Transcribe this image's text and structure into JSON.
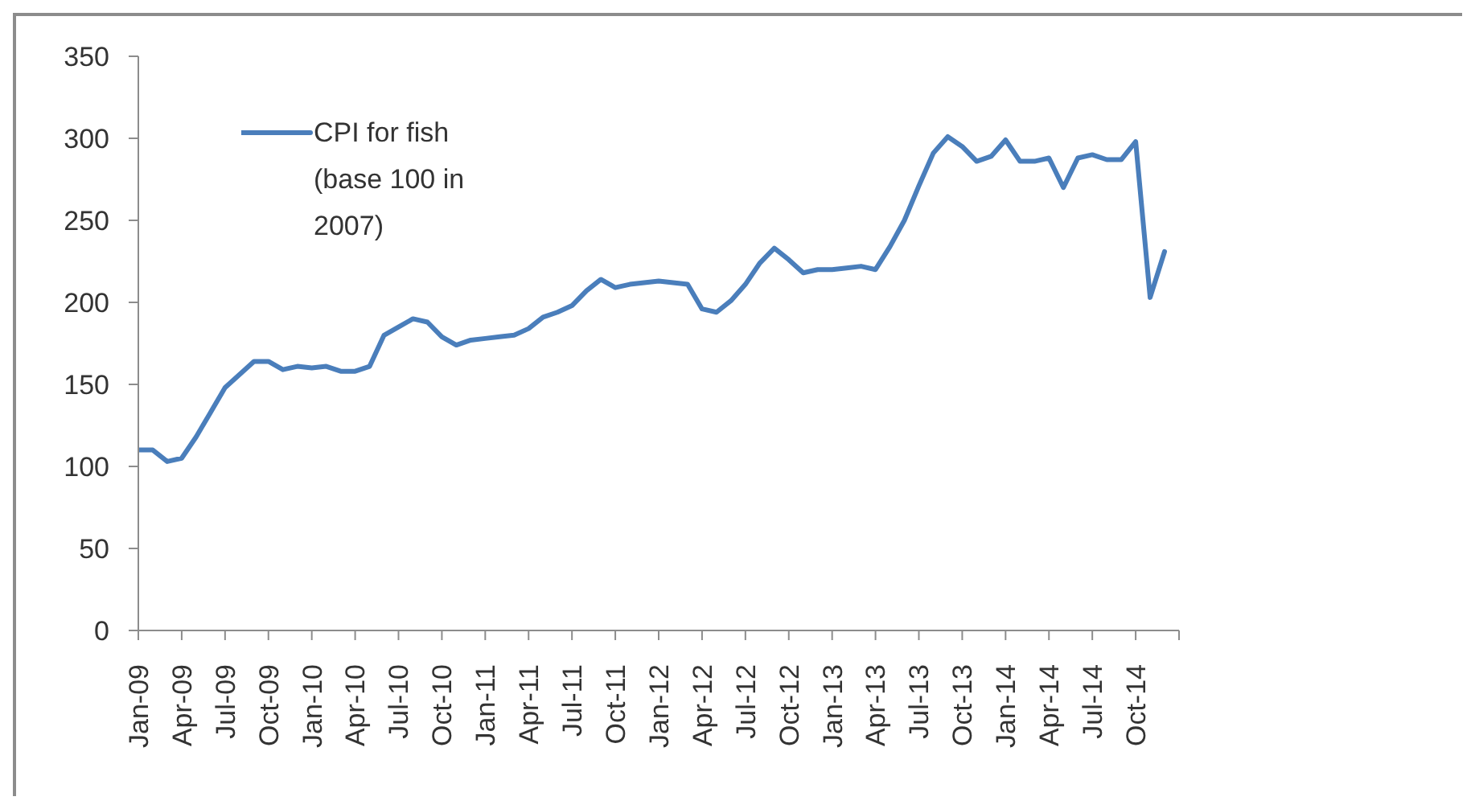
{
  "chart_data": {
    "type": "line",
    "x": [
      "2009-01",
      "2009-02",
      "2009-03",
      "2009-04",
      "2009-05",
      "2009-06",
      "2009-07",
      "2009-08",
      "2009-09",
      "2009-10",
      "2009-11",
      "2009-12",
      "2010-01",
      "2010-02",
      "2010-03",
      "2010-04",
      "2010-05",
      "2010-06",
      "2010-07",
      "2010-08",
      "2010-09",
      "2010-10",
      "2010-11",
      "2010-12",
      "2011-01",
      "2011-02",
      "2011-03",
      "2011-04",
      "2011-05",
      "2011-06",
      "2011-07",
      "2011-08",
      "2011-09",
      "2011-10",
      "2011-11",
      "2011-12",
      "2012-01",
      "2012-02",
      "2012-03",
      "2012-04",
      "2012-05",
      "2012-06",
      "2012-07",
      "2012-08",
      "2012-09",
      "2012-10",
      "2012-11",
      "2012-12",
      "2013-01",
      "2013-02",
      "2013-03",
      "2013-04",
      "2013-05",
      "2013-06",
      "2013-07",
      "2013-08",
      "2013-09",
      "2013-10",
      "2013-11",
      "2013-12",
      "2014-01",
      "2014-02",
      "2014-03",
      "2014-04",
      "2014-05",
      "2014-06",
      "2014-07",
      "2014-08",
      "2014-09",
      "2014-10",
      "2014-11",
      "2014-12"
    ],
    "series": [
      {
        "name": "CPI for fish (base 100 in 2007)",
        "color": "#4a7ebb",
        "values": [
          110,
          110,
          103,
          105,
          118,
          133,
          148,
          156,
          164,
          164,
          159,
          161,
          160,
          161,
          158,
          158,
          161,
          180,
          185,
          190,
          188,
          179,
          174,
          177,
          178,
          179,
          180,
          184,
          191,
          194,
          198,
          207,
          214,
          209,
          211,
          212,
          213,
          212,
          211,
          196,
          194,
          201,
          211,
          224,
          233,
          226,
          218,
          220,
          220,
          221,
          222,
          220,
          234,
          250,
          271,
          291,
          301,
          295,
          286,
          289,
          299,
          286,
          286,
          288,
          270,
          288,
          290,
          287,
          287,
          298,
          203,
          231
        ]
      }
    ],
    "xlim": [
      "2009-01",
      "2015-01"
    ],
    "xticks": [
      {
        "value": "2009-01",
        "label": "Jan-09"
      },
      {
        "value": "2009-04",
        "label": "Apr-09"
      },
      {
        "value": "2009-07",
        "label": "Jul-09"
      },
      {
        "value": "2009-10",
        "label": "Oct-09"
      },
      {
        "value": "2010-01",
        "label": "Jan-10"
      },
      {
        "value": "2010-04",
        "label": "Apr-10"
      },
      {
        "value": "2010-07",
        "label": "Jul-10"
      },
      {
        "value": "2010-10",
        "label": "Oct-10"
      },
      {
        "value": "2011-01",
        "label": "Jan-11"
      },
      {
        "value": "2011-04",
        "label": "Apr-11"
      },
      {
        "value": "2011-07",
        "label": "Jul-11"
      },
      {
        "value": "2011-10",
        "label": "Oct-11"
      },
      {
        "value": "2012-01",
        "label": "Jan-12"
      },
      {
        "value": "2012-04",
        "label": "Apr-12"
      },
      {
        "value": "2012-07",
        "label": "Jul-12"
      },
      {
        "value": "2012-10",
        "label": "Oct-12"
      },
      {
        "value": "2013-01",
        "label": "Jan-13"
      },
      {
        "value": "2013-04",
        "label": "Apr-13"
      },
      {
        "value": "2013-07",
        "label": "Jul-13"
      },
      {
        "value": "2013-10",
        "label": "Oct-13"
      },
      {
        "value": "2014-01",
        "label": "Jan-14"
      },
      {
        "value": "2014-04",
        "label": "Apr-14"
      },
      {
        "value": "2014-07",
        "label": "Jul-14"
      },
      {
        "value": "2014-10",
        "label": "Oct-14"
      },
      {
        "value": "2015-01",
        "label": null
      }
    ],
    "ylim": [
      0,
      350
    ],
    "yticks": [
      0,
      50,
      100,
      150,
      200,
      250,
      300,
      350
    ],
    "legend": "top left",
    "line_style": "solid"
  }
}
